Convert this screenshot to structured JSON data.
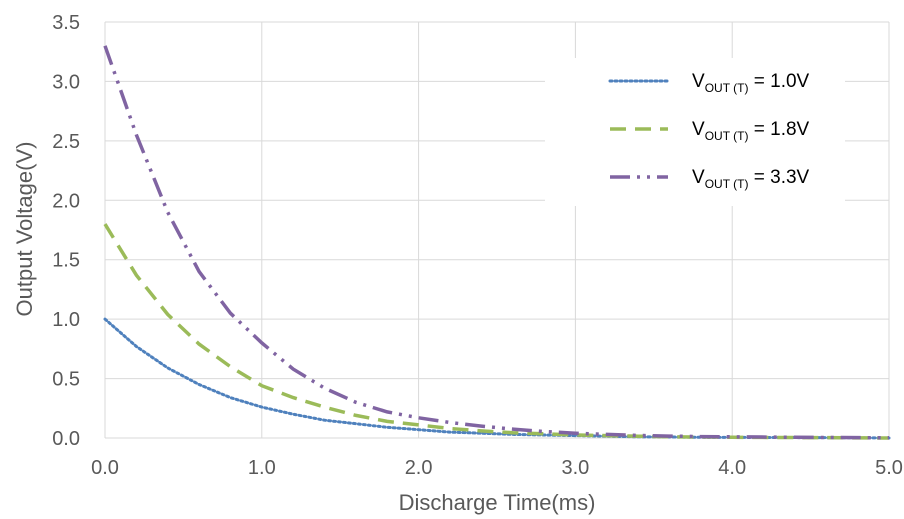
{
  "chart_data": {
    "type": "line",
    "title": "",
    "xlabel": "Discharge Time(ms)",
    "ylabel": "Output Voltage(V)",
    "xlim": [
      0,
      5
    ],
    "ylim": [
      0,
      3.5
    ],
    "x_ticks": [
      "0.0",
      "1.0",
      "2.0",
      "3.0",
      "4.0",
      "5.0"
    ],
    "y_ticks": [
      "0.0",
      "0.5",
      "1.0",
      "1.5",
      "2.0",
      "2.5",
      "3.0",
      "3.5"
    ],
    "grid": true,
    "legend_position": "top-right",
    "series": [
      {
        "name_main": "V",
        "name_sub": "OUT (T)",
        "name_rest": " = 1.0V",
        "color": "#4f81bd",
        "style": "dotted",
        "x": [
          0,
          0.2,
          0.4,
          0.6,
          0.8,
          1.0,
          1.2,
          1.4,
          1.6,
          1.8,
          2.0,
          2.2,
          2.4,
          2.6,
          2.8,
          3.0,
          3.2,
          3.4,
          3.6,
          3.8,
          4.0,
          4.5,
          5.0
        ],
        "y": [
          1.0,
          0.77,
          0.59,
          0.45,
          0.34,
          0.26,
          0.2,
          0.15,
          0.12,
          0.09,
          0.07,
          0.05,
          0.04,
          0.03,
          0.025,
          0.02,
          0.015,
          0.01,
          0.008,
          0.006,
          0.005,
          0.003,
          0.0
        ]
      },
      {
        "name_main": "V",
        "name_sub": "OUT (T)",
        "name_rest": " = 1.8V",
        "color": "#9bbb59",
        "style": "dashed",
        "x": [
          0,
          0.2,
          0.4,
          0.6,
          0.8,
          1.0,
          1.2,
          1.4,
          1.6,
          1.8,
          2.0,
          2.2,
          2.4,
          2.6,
          2.8,
          3.0,
          3.2,
          3.4,
          3.6,
          3.8,
          4.0,
          4.5,
          5.0
        ],
        "y": [
          1.8,
          1.37,
          1.04,
          0.79,
          0.6,
          0.44,
          0.34,
          0.26,
          0.19,
          0.14,
          0.11,
          0.08,
          0.06,
          0.045,
          0.035,
          0.025,
          0.02,
          0.015,
          0.01,
          0.008,
          0.006,
          0.003,
          0.0
        ]
      },
      {
        "name_main": "V",
        "name_sub": "OUT (T)",
        "name_rest": " = 3.3V",
        "color": "#8064a2",
        "style": "dashdotdot",
        "x": [
          0,
          0.2,
          0.4,
          0.6,
          0.8,
          1.0,
          1.2,
          1.4,
          1.6,
          1.8,
          2.0,
          2.2,
          2.4,
          2.6,
          2.8,
          3.0,
          3.2,
          3.4,
          3.6,
          3.8,
          4.0,
          4.5,
          5.0
        ],
        "y": [
          3.3,
          2.55,
          1.9,
          1.4,
          1.05,
          0.8,
          0.58,
          0.42,
          0.3,
          0.22,
          0.17,
          0.13,
          0.1,
          0.075,
          0.055,
          0.04,
          0.03,
          0.022,
          0.016,
          0.012,
          0.01,
          0.005,
          0.002
        ]
      }
    ]
  }
}
